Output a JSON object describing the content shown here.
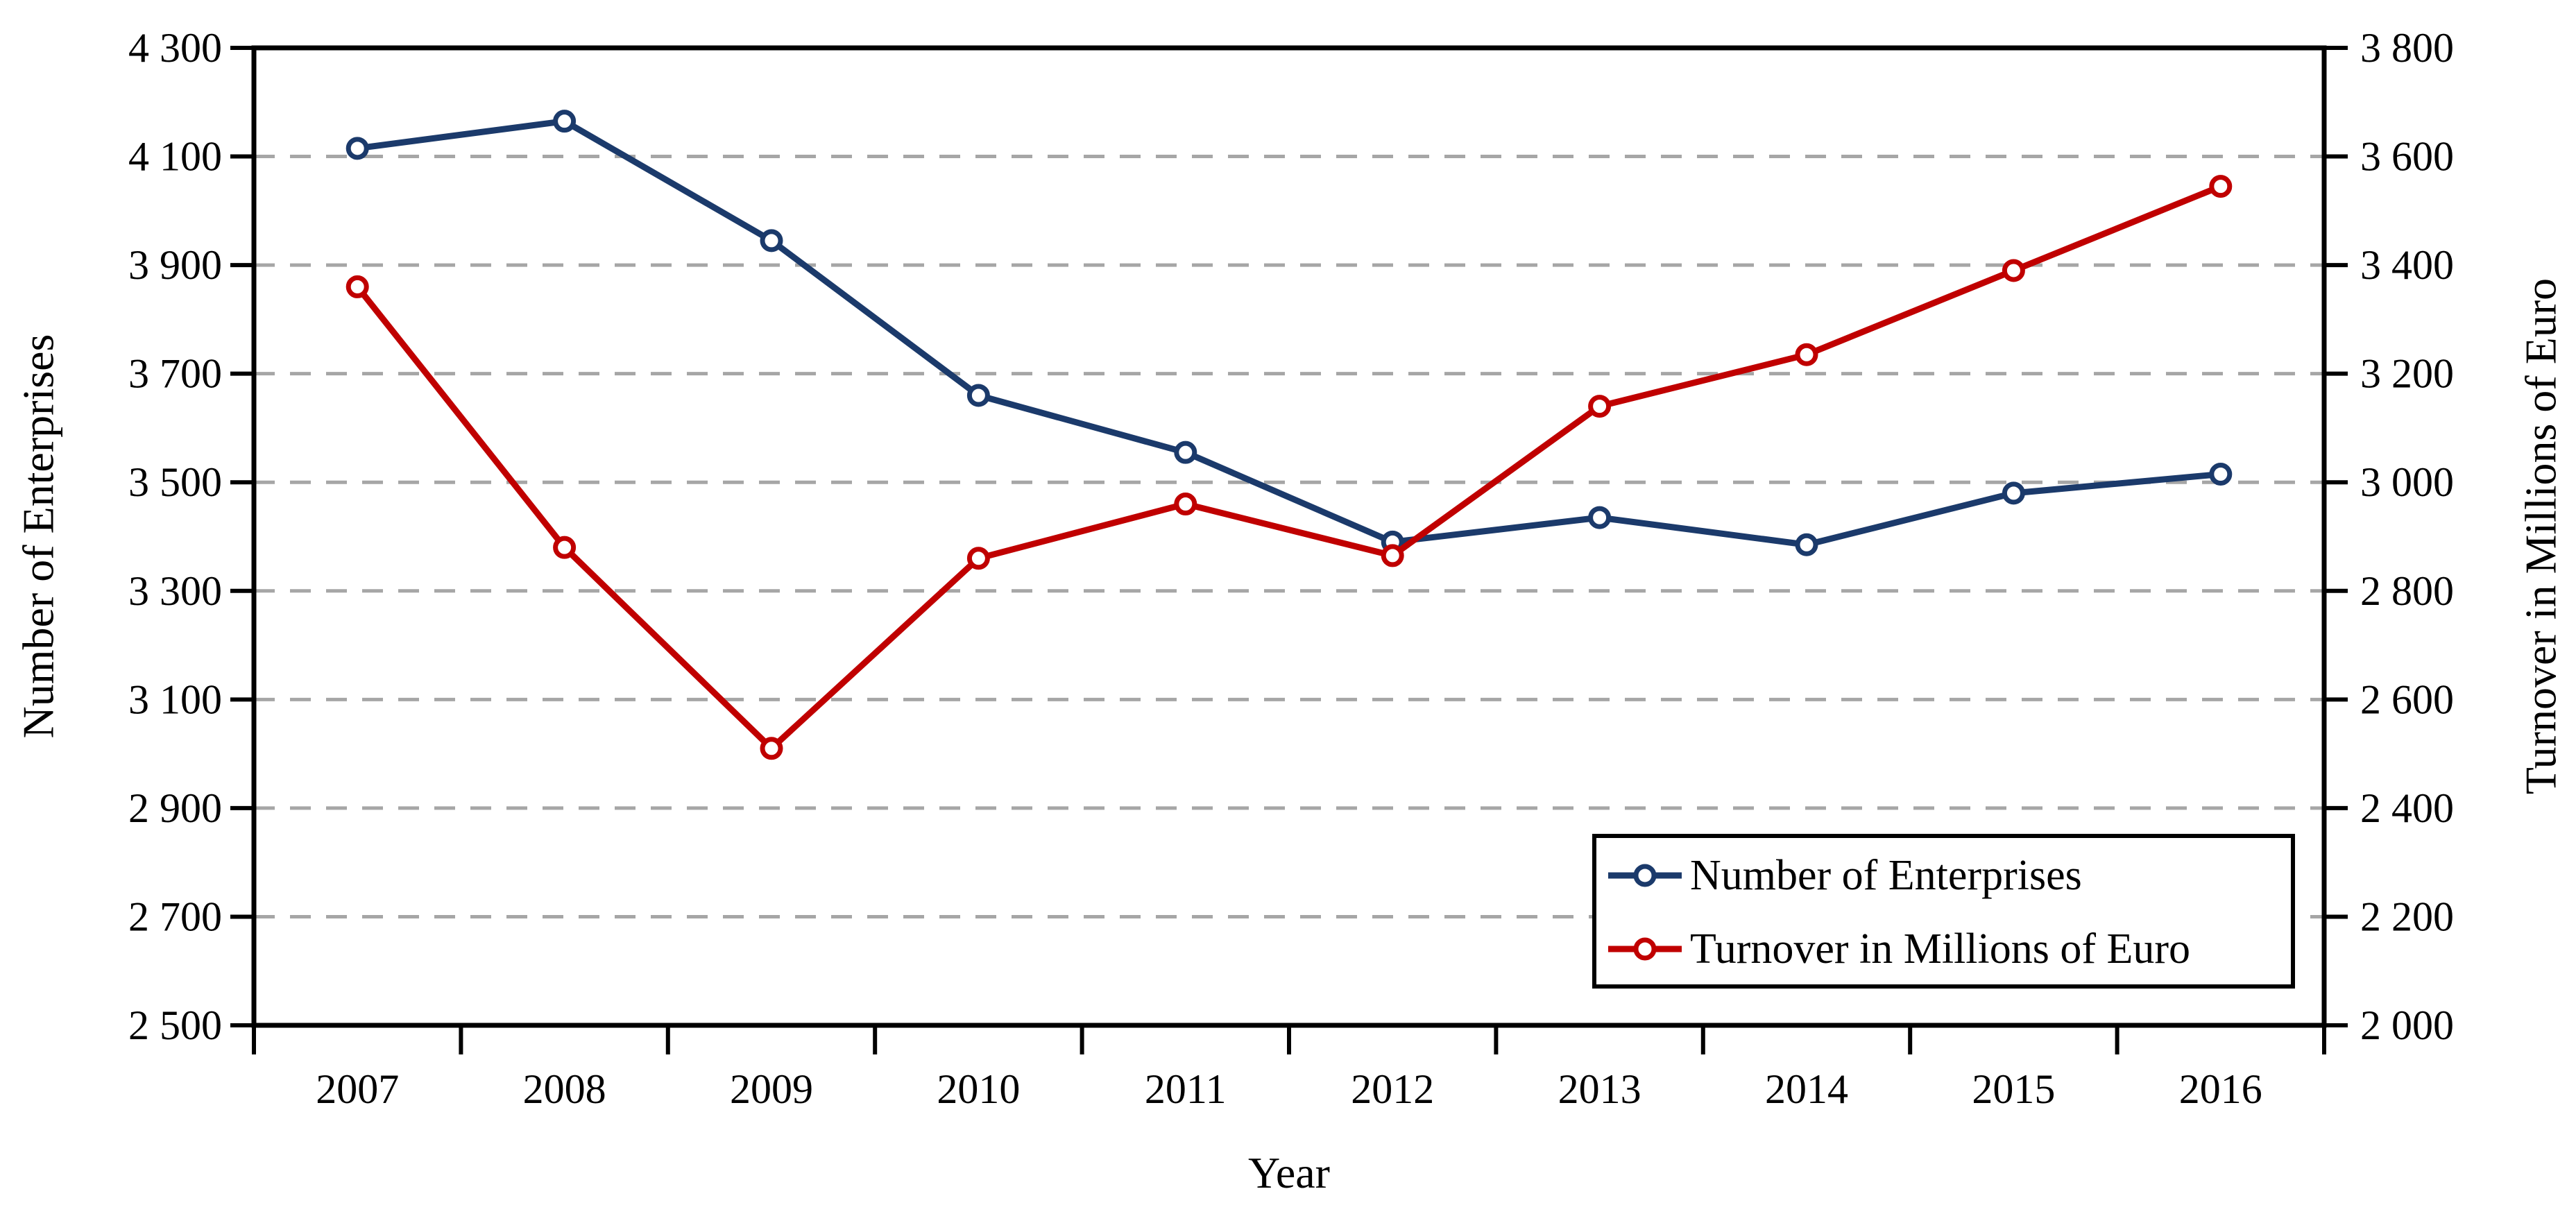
{
  "chart_data": {
    "type": "line",
    "x_labels": [
      "2007",
      "2008",
      "2009",
      "2010",
      "2011",
      "2012",
      "2013",
      "2014",
      "2015",
      "2016"
    ],
    "xlabel": "Year",
    "left_axis": {
      "label": "Number of Enterprises",
      "min": 2500,
      "max": 4300,
      "step": 200,
      "tick_labels": [
        "4 300",
        "4 100",
        "3 900",
        "3 700",
        "3 500",
        "3 300",
        "3 100",
        "2 900",
        "2 700",
        "2 500"
      ]
    },
    "right_axis": {
      "label": "Turnover in Millions of Euro",
      "min": 2000,
      "max": 3800,
      "step": 200,
      "tick_labels": [
        "3 800",
        "3 600",
        "3 400",
        "3 200",
        "3 000",
        "2 800",
        "2 600",
        "2 400",
        "2 200",
        "2 000"
      ]
    },
    "grid": {
      "show": true,
      "style": "dashed",
      "color": "#A6A6A6"
    },
    "axis_color": "#000000",
    "legend": {
      "position": "bottom-right",
      "border_color": "#000000",
      "background": "#FFFFFF"
    },
    "series": [
      {
        "name": "Number of Enterprises",
        "axis": "left",
        "color": "#1B3A6B",
        "marker": "open-circle",
        "values": [
          4115,
          4165,
          3945,
          3660,
          3555,
          3390,
          3435,
          3385,
          3480,
          3515
        ]
      },
      {
        "name": "Turnover in Millions of Euro",
        "axis": "right",
        "color": "#C00000",
        "marker": "open-circle",
        "values": [
          3360,
          2880,
          2510,
          2860,
          2960,
          2865,
          3140,
          3235,
          3390,
          3545
        ]
      }
    ]
  }
}
